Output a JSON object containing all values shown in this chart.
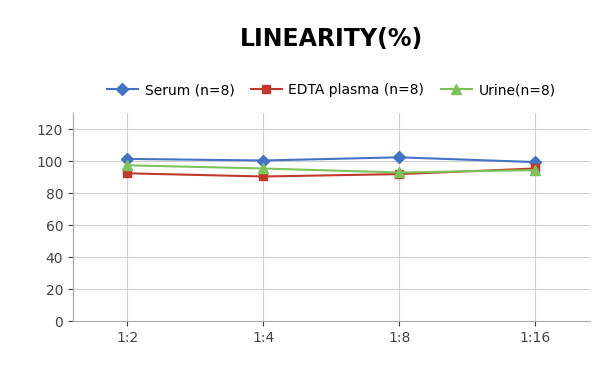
{
  "title": "LINEARITY(%)",
  "x_labels": [
    "1:2",
    "1:4",
    "1:8",
    "1:16"
  ],
  "x_positions": [
    0,
    1,
    2,
    3
  ],
  "series": [
    {
      "label": "Serum (n=8)",
      "values": [
        101.5,
        100.5,
        102.5,
        99.5
      ],
      "color": "#4472C4",
      "marker": "D",
      "markersize": 6,
      "linewidth": 1.5
    },
    {
      "label": "EDTA plasma (n=8)",
      "values": [
        92.5,
        90.5,
        92.0,
        95.5
      ],
      "color": "#C0392B",
      "marker": "s",
      "markersize": 6,
      "linewidth": 1.5
    },
    {
      "label": "Urine(n=8)",
      "values": [
        97.5,
        95.5,
        93.0,
        94.5
      ],
      "color": "#7DC35A",
      "marker": "^",
      "markersize": 7,
      "linewidth": 1.5
    }
  ],
  "ylim": [
    0,
    130
  ],
  "yticks": [
    0,
    20,
    40,
    60,
    80,
    100,
    120
  ],
  "background_color": "#FFFFFF",
  "title_fontsize": 17,
  "title_fontweight": "bold",
  "legend_fontsize": 10,
  "tick_fontsize": 10,
  "grid_color": "#D0D0D0",
  "grid_linewidth": 0.8
}
